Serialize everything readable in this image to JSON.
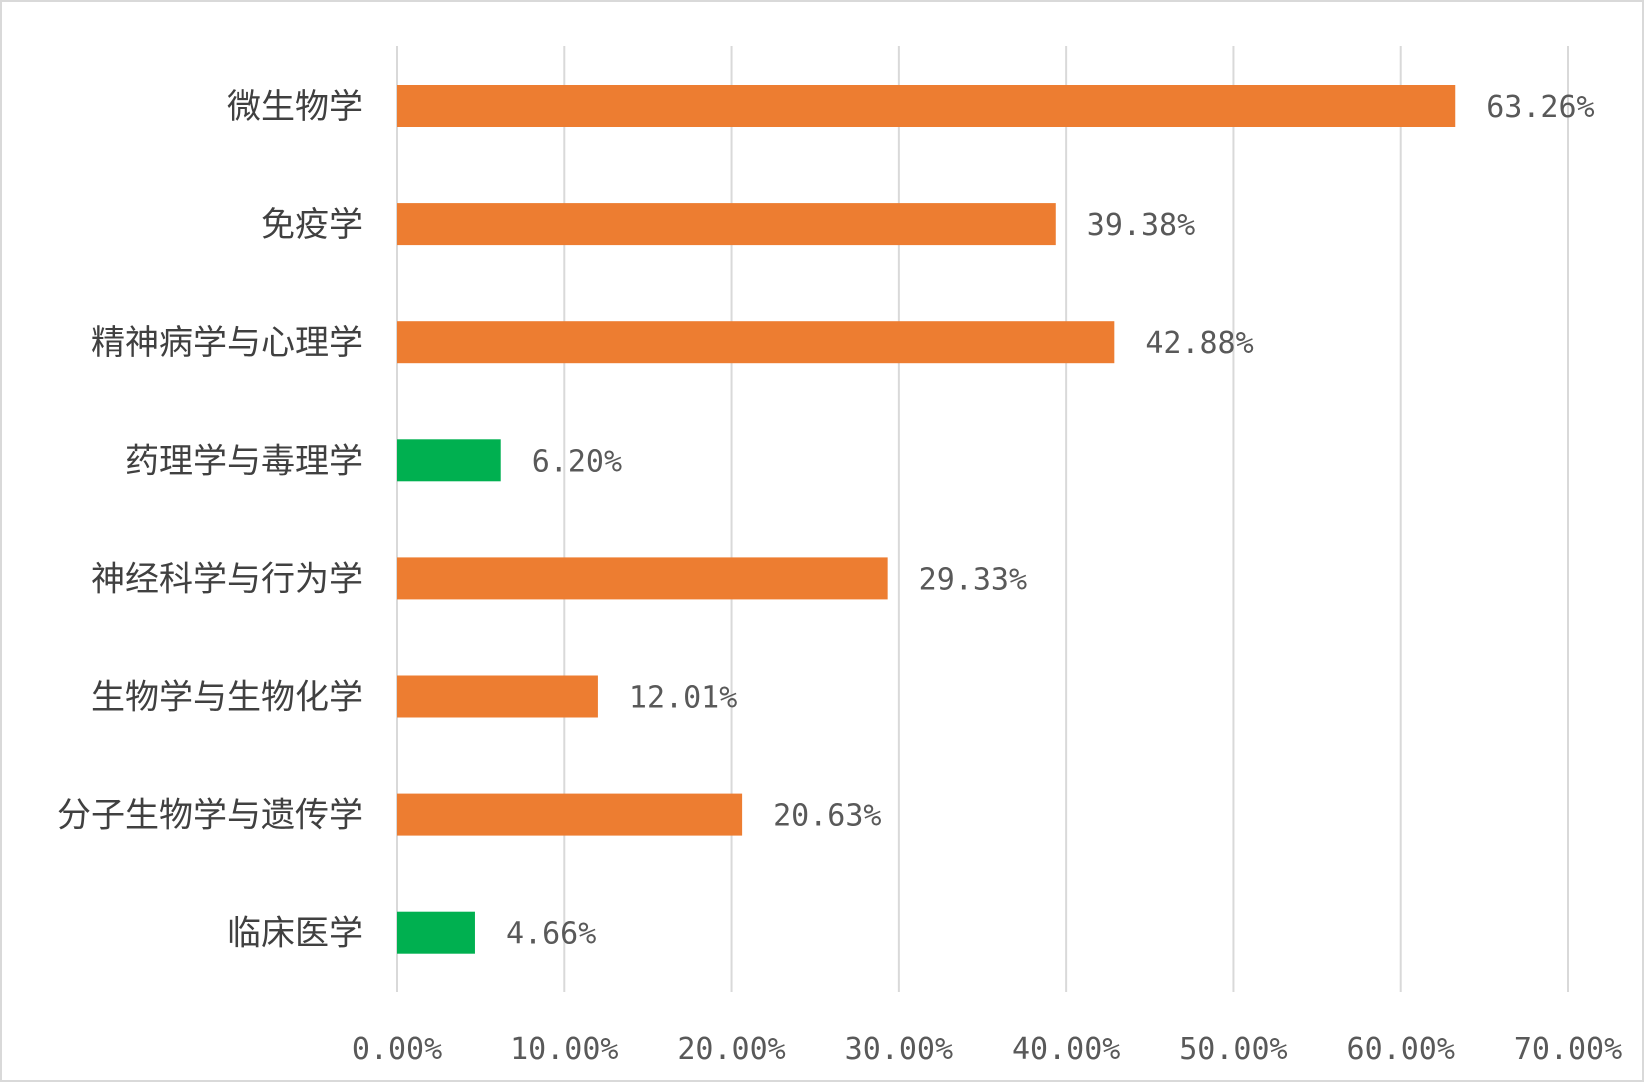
{
  "chart_data": {
    "type": "bar",
    "orientation": "horizontal",
    "categories": [
      "微生物学",
      "免疫学",
      "精神病学与心理学",
      "药理学与毒理学",
      "神经科学与行为学",
      "生物学与生物化学",
      "分子生物学与遗传学",
      "临床医学"
    ],
    "values": [
      63.26,
      39.38,
      42.88,
      6.2,
      29.33,
      12.01,
      20.63,
      4.66
    ],
    "value_labels": [
      "63.26%",
      "39.38%",
      "42.88%",
      "6.20%",
      "29.33%",
      "12.01%",
      "20.63%",
      "4.66%"
    ],
    "bar_colors": [
      "#ED7D31",
      "#ED7D31",
      "#ED7D31",
      "#00B050",
      "#ED7D31",
      "#ED7D31",
      "#ED7D31",
      "#00B050"
    ],
    "xlim": [
      0,
      70
    ],
    "x_ticks": [
      0,
      10,
      20,
      30,
      40,
      50,
      60,
      70
    ],
    "x_tick_labels": [
      "0.00%",
      "10.00%",
      "20.00%",
      "30.00%",
      "40.00%",
      "50.00%",
      "60.00%",
      "70.00%"
    ],
    "grid": true,
    "gridline_color": "#d9d9d9",
    "legend": "none"
  }
}
